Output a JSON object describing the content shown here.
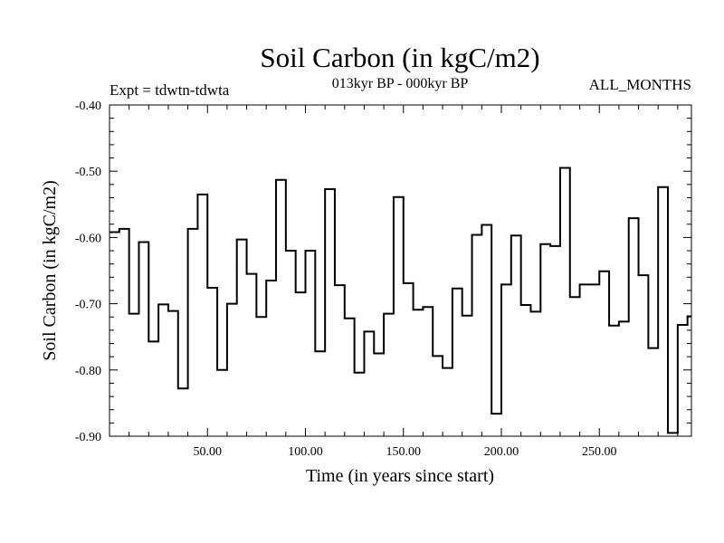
{
  "chart_data": {
    "type": "line",
    "style": "step",
    "title": "Soil Carbon (in kgC/m2)",
    "subtitle": "013kyr BP - 000kyr BP",
    "left_label": "Expt = tdwtn-tdwta",
    "right_label": "ALL_MONTHS",
    "xlabel": "Time (in years since start)",
    "ylabel": "Soil Carbon (in kgC/m2)",
    "xlim": [
      0,
      297
    ],
    "ylim": [
      -0.9,
      -0.4
    ],
    "xticks": [
      50,
      100,
      150,
      200,
      250
    ],
    "xtick_labels": [
      "50.00",
      "100.00",
      "150.00",
      "200.00",
      "250.00"
    ],
    "yticks": [
      -0.4,
      -0.5,
      -0.6,
      -0.7,
      -0.8,
      -0.9
    ],
    "ytick_labels": [
      "-0.40",
      "-0.50",
      "-0.60",
      "-0.70",
      "-0.80",
      "-0.90"
    ],
    "series": [
      {
        "name": "Soil Carbon",
        "x": [
          0,
          5,
          10,
          15,
          20,
          25,
          30,
          35,
          40,
          45,
          50,
          55,
          60,
          65,
          70,
          75,
          80,
          85,
          90,
          95,
          100,
          105,
          110,
          115,
          120,
          125,
          130,
          135,
          140,
          145,
          150,
          155,
          160,
          165,
          170,
          175,
          180,
          185,
          190,
          195,
          200,
          205,
          210,
          215,
          220,
          225,
          230,
          235,
          240,
          245,
          250,
          255,
          260,
          265,
          270,
          275,
          280,
          285,
          290,
          295
        ],
        "values": [
          -0.592,
          -0.587,
          -0.715,
          -0.607,
          -0.757,
          -0.701,
          -0.711,
          -0.828,
          -0.587,
          -0.535,
          -0.676,
          -0.8,
          -0.7,
          -0.603,
          -0.655,
          -0.72,
          -0.665,
          -0.513,
          -0.62,
          -0.683,
          -0.62,
          -0.772,
          -0.527,
          -0.672,
          -0.722,
          -0.804,
          -0.742,
          -0.775,
          -0.715,
          -0.539,
          -0.669,
          -0.709,
          -0.705,
          -0.779,
          -0.797,
          -0.677,
          -0.718,
          -0.596,
          -0.581,
          -0.866,
          -0.671,
          -0.597,
          -0.702,
          -0.712,
          -0.61,
          -0.613,
          -0.495,
          -0.69,
          -0.671,
          -0.671,
          -0.651,
          -0.733,
          -0.727,
          -0.571,
          -0.657,
          -0.767,
          -0.524,
          -0.895,
          -0.732,
          -0.719
        ]
      }
    ]
  }
}
